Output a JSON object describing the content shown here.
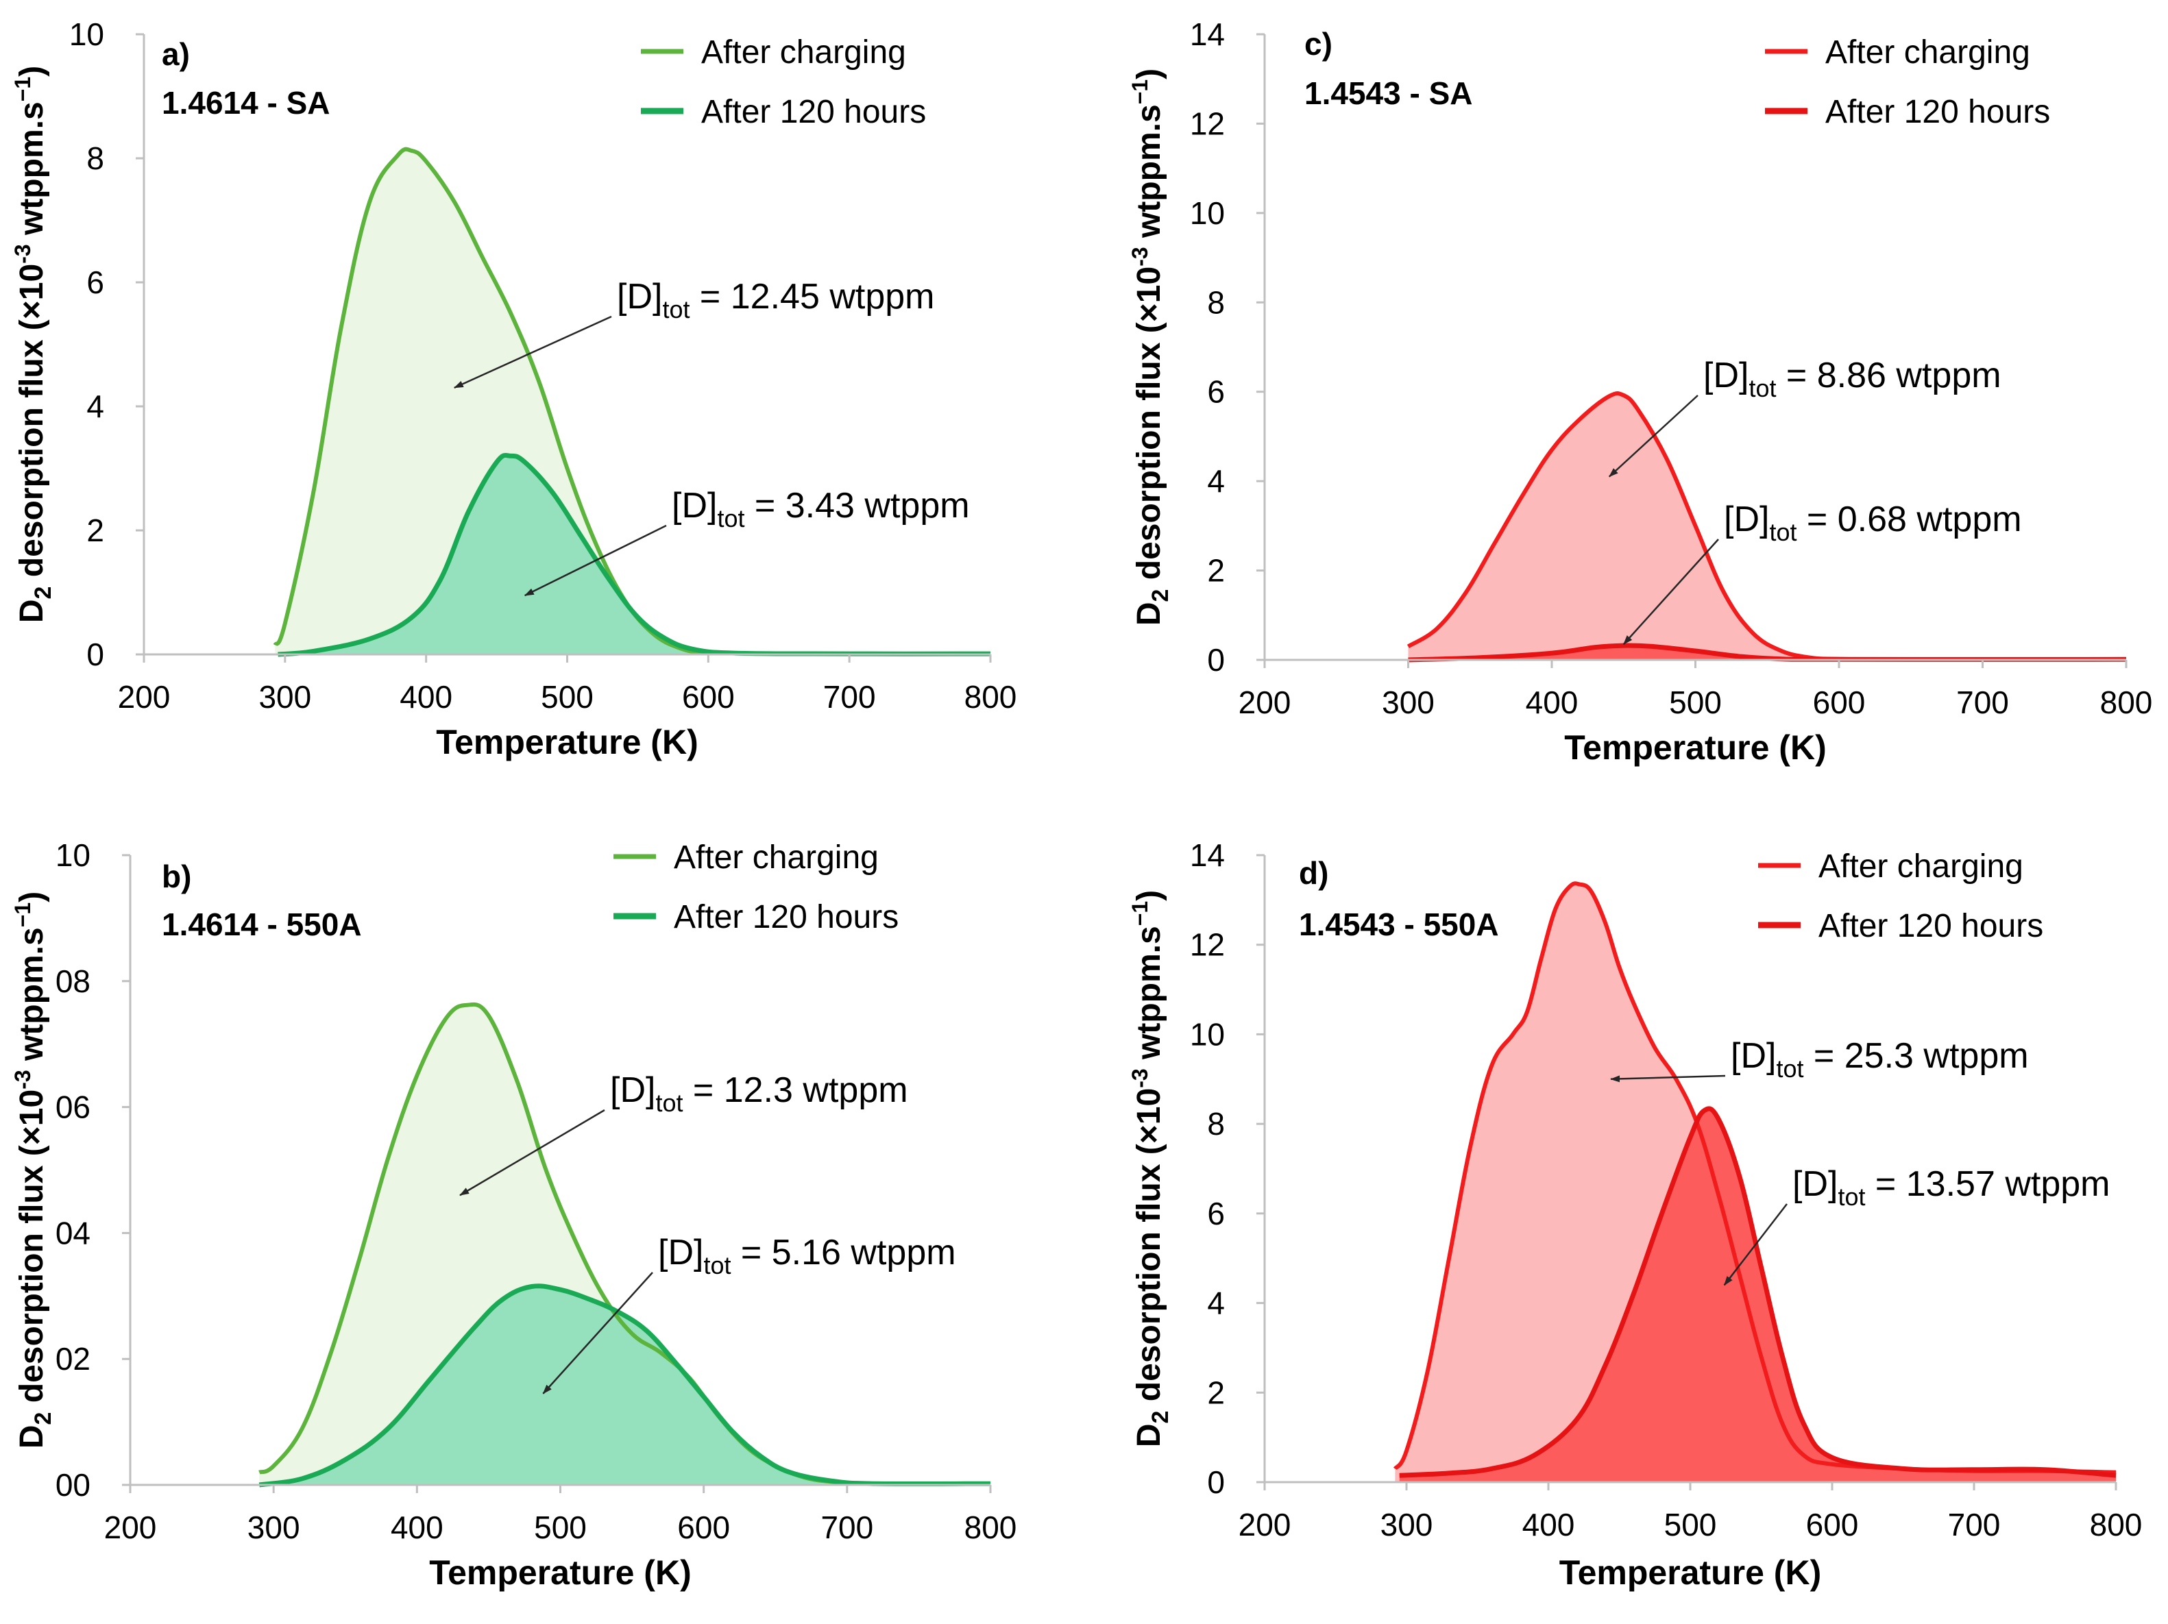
{
  "chart_data": [
    {
      "type": "area",
      "panel_label": "a)",
      "sample": "1.4614 - SA",
      "xlabel": "Temperature (K)",
      "ylabel_main": "D",
      "ylabel_sub": "2",
      "ylabel_mid": " desorption flux (×10",
      "ylabel_exp": "-3",
      "ylabel_end": " wtppm.s",
      "ylabel_exp2": "−1",
      "ylabel_close": ")",
      "xlim": [
        200,
        800
      ],
      "ylim": [
        0,
        10
      ],
      "xticks": [
        200,
        300,
        400,
        500,
        600,
        700,
        800
      ],
      "xtick_labels": [
        "200",
        "300",
        "400",
        "500",
        "600",
        "700",
        "800"
      ],
      "yticks": [
        0,
        2,
        4,
        6,
        8,
        10
      ],
      "ytick_labels": [
        "0",
        "2",
        "4",
        "6",
        "8",
        "10"
      ],
      "legend": [
        "After charging",
        "After 120 hours"
      ],
      "series": [
        {
          "name": "After charging",
          "x": [
            293,
            300,
            320,
            340,
            360,
            380,
            390,
            400,
            420,
            440,
            460,
            480,
            500,
            520,
            540,
            560,
            580,
            600,
            650,
            700,
            800
          ],
          "y": [
            0.15,
            0.5,
            2.6,
            5.3,
            7.3,
            8.05,
            8.12,
            7.95,
            7.3,
            6.4,
            5.5,
            4.4,
            3.0,
            1.8,
            0.9,
            0.35,
            0.1,
            0.03,
            0.01,
            0.01,
            0.01
          ]
        },
        {
          "name": "After 120 hours",
          "x": [
            295,
            320,
            360,
            390,
            410,
            430,
            450,
            460,
            470,
            490,
            510,
            530,
            550,
            570,
            590,
            620,
            700,
            800
          ],
          "y": [
            0.0,
            0.05,
            0.25,
            0.6,
            1.2,
            2.3,
            3.1,
            3.2,
            3.1,
            2.6,
            1.9,
            1.2,
            0.6,
            0.25,
            0.08,
            0.02,
            0.01,
            0.01
          ]
        }
      ],
      "annotations": [
        {
          "prefix": "[D]",
          "sub": "tot",
          "suffix": " = 12.45 wtppm",
          "point_x": 420,
          "point_y": 4.3
        },
        {
          "prefix": "[D]",
          "sub": "tot",
          "suffix": " = 3.43 wtppm",
          "point_x": 470,
          "point_y": 0.95
        }
      ]
    },
    {
      "type": "area",
      "panel_label": "b)",
      "sample": "1.4614 - 550A",
      "xlabel": "Temperature (K)",
      "ylabel_main": "D",
      "ylabel_sub": "2",
      "ylabel_mid": " desorption flux (×10",
      "ylabel_exp": "-3",
      "ylabel_end": " wtppm.s",
      "ylabel_exp2": "−1",
      "ylabel_close": ")",
      "xlim": [
        200,
        800
      ],
      "ylim": [
        0,
        10
      ],
      "xticks": [
        200,
        300,
        400,
        500,
        600,
        700,
        800
      ],
      "xtick_labels": [
        "200",
        "300",
        "400",
        "500",
        "600",
        "700",
        "800"
      ],
      "yticks": [
        0,
        2,
        4,
        6,
        8,
        10
      ],
      "ytick_labels": [
        "00",
        "02",
        "04",
        "06",
        "08",
        "10"
      ],
      "legend": [
        "After charging",
        "After 120 hours"
      ],
      "series": [
        {
          "name": "After charging",
          "x": [
            290,
            300,
            320,
            340,
            360,
            380,
            400,
            420,
            435,
            450,
            470,
            490,
            510,
            530,
            550,
            570,
            590,
            610,
            630,
            650,
            670,
            690,
            720,
            800
          ],
          "y": [
            0.2,
            0.3,
            0.9,
            2.1,
            3.6,
            5.2,
            6.5,
            7.4,
            7.62,
            7.45,
            6.4,
            5.0,
            3.9,
            3.0,
            2.4,
            2.1,
            1.7,
            1.1,
            0.6,
            0.3,
            0.12,
            0.05,
            0.02,
            0.02
          ]
        },
        {
          "name": "After 120 hours",
          "x": [
            290,
            320,
            350,
            380,
            410,
            440,
            460,
            480,
            500,
            520,
            540,
            560,
            580,
            600,
            620,
            640,
            660,
            690,
            720,
            800
          ],
          "y": [
            0.0,
            0.1,
            0.4,
            0.9,
            1.7,
            2.5,
            2.95,
            3.15,
            3.1,
            2.95,
            2.75,
            2.45,
            1.95,
            1.4,
            0.85,
            0.45,
            0.2,
            0.06,
            0.02,
            0.02
          ]
        }
      ],
      "annotations": [
        {
          "prefix": "[D]",
          "sub": "tot",
          "suffix": " = 12.3 wtppm",
          "point_x": 430,
          "point_y": 4.6
        },
        {
          "prefix": "[D]",
          "sub": "tot",
          "suffix": " = 5.16 wtppm",
          "point_x": 488,
          "point_y": 1.45
        }
      ]
    },
    {
      "type": "area",
      "panel_label": "c)",
      "sample": "1.4543 - SA",
      "xlabel": "Temperature (K)",
      "ylabel_main": "D",
      "ylabel_sub": "2",
      "ylabel_mid": " desorption flux (×10",
      "ylabel_exp": "-3",
      "ylabel_end": " wtppm.s",
      "ylabel_exp2": "−1",
      "ylabel_close": ")",
      "xlim": [
        200,
        800
      ],
      "ylim": [
        0,
        14
      ],
      "xticks": [
        200,
        300,
        400,
        500,
        600,
        700,
        800
      ],
      "xtick_labels": [
        "200",
        "300",
        "400",
        "500",
        "600",
        "700",
        "800"
      ],
      "yticks": [
        0,
        2,
        4,
        6,
        8,
        10,
        12,
        14
      ],
      "ytick_labels": [
        "0",
        "2",
        "4",
        "6",
        "8",
        "10",
        "12",
        "14"
      ],
      "legend": [
        "After charging",
        "After 120 hours"
      ],
      "series": [
        {
          "name": "After charging",
          "x": [
            300,
            320,
            340,
            360,
            380,
            400,
            420,
            440,
            450,
            460,
            480,
            500,
            520,
            540,
            560,
            580,
            600,
            650,
            700,
            800
          ],
          "y": [
            0.3,
            0.7,
            1.5,
            2.6,
            3.7,
            4.7,
            5.4,
            5.9,
            5.92,
            5.6,
            4.5,
            3.0,
            1.5,
            0.6,
            0.2,
            0.05,
            0.02,
            0.01,
            0.01,
            0.01
          ]
        },
        {
          "name": "After 120 hours",
          "x": [
            300,
            350,
            400,
            430,
            450,
            470,
            500,
            530,
            560,
            600,
            800
          ],
          "y": [
            0.0,
            0.05,
            0.15,
            0.28,
            0.32,
            0.3,
            0.2,
            0.08,
            0.02,
            0.01,
            0.01
          ]
        }
      ],
      "annotations": [
        {
          "prefix": "[D]",
          "sub": "tot",
          "suffix": " = 8.86 wtppm",
          "point_x": 440,
          "point_y": 4.1
        },
        {
          "prefix": "[D]",
          "sub": "tot",
          "suffix": " = 0.68 wtppm",
          "point_x": 450,
          "point_y": 0.35
        }
      ]
    },
    {
      "type": "area",
      "panel_label": "d)",
      "sample": "1.4543 - 550A",
      "xlabel": "Temperature (K)",
      "ylabel_main": "D",
      "ylabel_sub": "2",
      "ylabel_mid": " desorption flux (×10",
      "ylabel_exp": "-3",
      "ylabel_end": " wtppm.s",
      "ylabel_exp2": "−1",
      "ylabel_close": ")",
      "xlim": [
        200,
        800
      ],
      "ylim": [
        0,
        14
      ],
      "xticks": [
        200,
        300,
        400,
        500,
        600,
        700,
        800
      ],
      "xtick_labels": [
        "200",
        "300",
        "400",
        "500",
        "600",
        "700",
        "800"
      ],
      "yticks": [
        0,
        2,
        4,
        6,
        8,
        10,
        12,
        14
      ],
      "ytick_labels": [
        "0",
        "2",
        "4",
        "6",
        "8",
        "10",
        "12",
        "14"
      ],
      "legend": [
        "After charging",
        "After 120 hours"
      ],
      "series": [
        {
          "name": "After charging",
          "x": [
            292,
            300,
            315,
            330,
            345,
            360,
            375,
            385,
            395,
            405,
            415,
            422,
            430,
            440,
            450,
            460,
            475,
            490,
            505,
            520,
            535,
            550,
            565,
            580,
            600,
            650,
            700,
            750,
            800
          ],
          "y": [
            0.3,
            0.7,
            2.5,
            5.0,
            7.5,
            9.3,
            10.0,
            10.5,
            11.7,
            12.8,
            13.3,
            13.35,
            13.2,
            12.5,
            11.5,
            10.7,
            9.7,
            9.0,
            8.0,
            6.4,
            4.6,
            2.8,
            1.3,
            0.6,
            0.4,
            0.3,
            0.25,
            0.25,
            0.22
          ]
        },
        {
          "name": "After 120 hours",
          "x": [
            295,
            330,
            360,
            390,
            420,
            440,
            460,
            480,
            500,
            510,
            520,
            535,
            550,
            565,
            580,
            600,
            650,
            700,
            750,
            800
          ],
          "y": [
            0.15,
            0.2,
            0.3,
            0.6,
            1.4,
            2.6,
            4.2,
            6.0,
            7.7,
            8.3,
            8.1,
            6.8,
            4.8,
            2.8,
            1.3,
            0.55,
            0.3,
            0.28,
            0.28,
            0.15
          ]
        }
      ],
      "annotations": [
        {
          "prefix": "[D]",
          "sub": "tot",
          "suffix": " = 25.3 wtppm",
          "point_x": 444,
          "point_y": 9.0
        },
        {
          "prefix": "[D]",
          "sub": "tot",
          "suffix": " = 13.57 wtppm",
          "point_x": 524,
          "point_y": 4.4
        }
      ]
    }
  ],
  "colors": {
    "green_line_charging": "#5cb43c",
    "green_fill_charging": "#ecf6e4",
    "green_line_120h": "#1aaa55",
    "green_fill_120h": "#95e1bd",
    "red_line_charging": "#f21c1c",
    "red_fill_charging": "#fdbaba",
    "red_line_120h": "#e51313",
    "red_fill_120h": "#fd5c5c",
    "axis": "#bfbfbf",
    "text": "#000000",
    "arrow": "#262626"
  }
}
